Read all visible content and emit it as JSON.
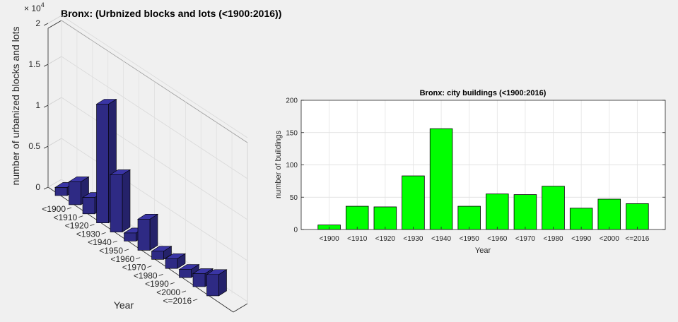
{
  "chart_data": [
    {
      "type": "bar",
      "style": "3d",
      "title": "Bronx: (Urbnized blocks and lots (<1900:2016))",
      "xlabel": "Year",
      "ylabel": "number of urbanized blocks and lots",
      "exponent_label": "× 10",
      "exponent_power": "4",
      "ylim": [
        0,
        2
      ],
      "yticks": [
        "0",
        "0.5",
        "1",
        "1.5",
        "2"
      ],
      "categories": [
        "<1900",
        "<1910",
        "<1920",
        "<1930",
        "<1940",
        "<1950",
        "<1960",
        "<1970",
        "<1980",
        "<1990",
        "<2000",
        "<=2016"
      ],
      "values": [
        0.1,
        0.28,
        0.2,
        1.45,
        0.7,
        0.1,
        0.38,
        0.1,
        0.12,
        0.1,
        0.16,
        0.26
      ],
      "bar_color": "#2e2a84",
      "grid": true
    },
    {
      "type": "bar",
      "title": "Bronx: city buildings (<1900:2016)",
      "xlabel": "Year",
      "ylabel": "number of buildings",
      "ylim": [
        0,
        200
      ],
      "yticks": [
        "0",
        "50",
        "100",
        "150",
        "200"
      ],
      "categories": [
        "<1900",
        "<1910",
        "<1920",
        "<1930",
        "<1940",
        "<1950",
        "<1960",
        "<1970",
        "<1980",
        "<1990",
        "<2000",
        "<=2016"
      ],
      "values": [
        7,
        36,
        35,
        83,
        156,
        36,
        55,
        54,
        67,
        33,
        47,
        40
      ],
      "bar_color": "#00ff00",
      "grid": true
    }
  ]
}
